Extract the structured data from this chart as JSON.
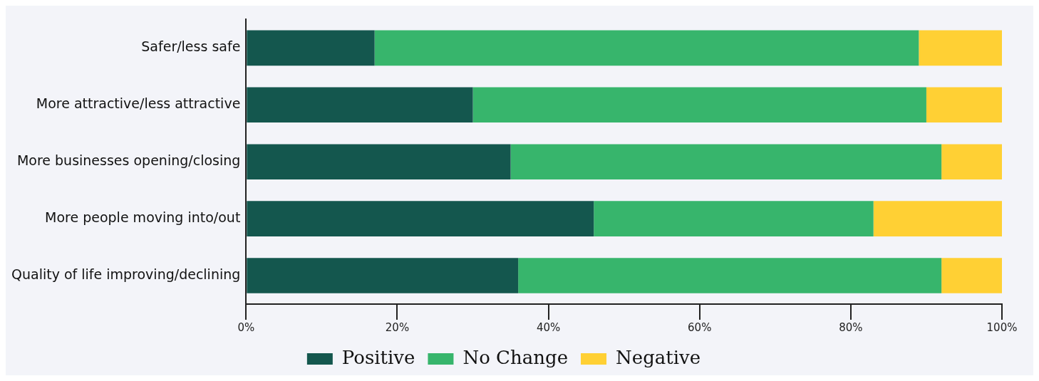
{
  "chart_data": {
    "type": "bar",
    "orientation": "horizontal",
    "stacked": true,
    "categories": [
      "Safer/less safe",
      "More attractive/less attractive",
      "More businesses opening/closing",
      "More people moving into/out",
      "Quality of life improving/declining"
    ],
    "series": [
      {
        "name": "Positive",
        "color": "#14574e",
        "values": [
          17,
          30,
          35,
          46,
          36
        ]
      },
      {
        "name": "No Change",
        "color": "#37b56c",
        "values": [
          72,
          60,
          57,
          37,
          56
        ]
      },
      {
        "name": "Negative",
        "color": "#ffd034",
        "values": [
          11,
          10,
          8,
          17,
          8
        ]
      }
    ],
    "xlim": [
      0,
      100
    ],
    "xticks": [
      {
        "value": 0,
        "label": "0%"
      },
      {
        "value": 20,
        "label": "20%"
      },
      {
        "value": 40,
        "label": "40%"
      },
      {
        "value": 60,
        "label": "60%"
      },
      {
        "value": 80,
        "label": "80%"
      },
      {
        "value": 100,
        "label": "100%"
      }
    ],
    "grid": false,
    "legend": "bottom"
  }
}
